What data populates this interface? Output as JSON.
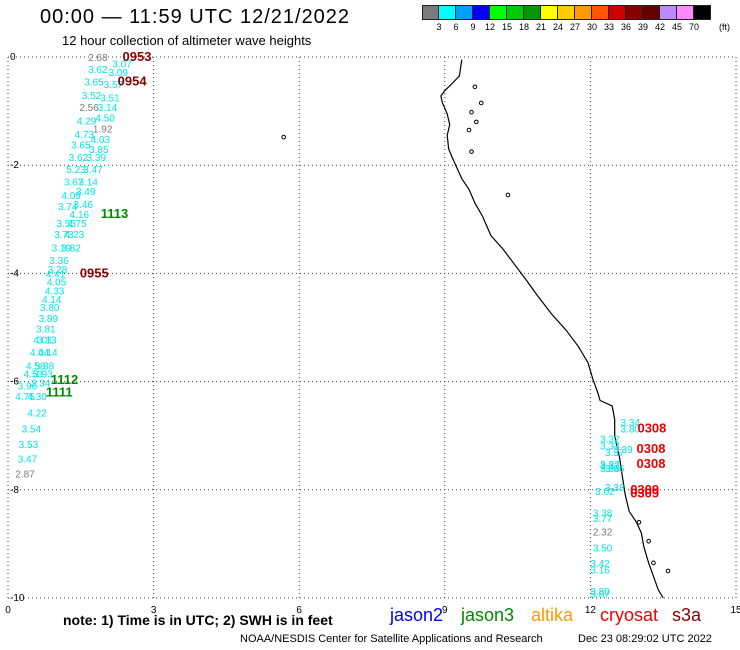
{
  "header": {
    "title": "00:00 — 11:59 UTC 12/21/2022",
    "subtitle": "12 hour collection of altimeter wave heights"
  },
  "color_scale": {
    "colors": [
      "#7a7a7a",
      "#00ffff",
      "#00a0ff",
      "#0000ff",
      "#00ff00",
      "#00cc00",
      "#009900",
      "#ffff00",
      "#ffcc00",
      "#ff9900",
      "#ff5500",
      "#cc0000",
      "#880000",
      "#660000",
      "#bb88ff",
      "#ff88ff",
      "#000000"
    ],
    "labels": [
      "3",
      "6",
      "9",
      "12",
      "15",
      "18",
      "21",
      "24",
      "27",
      "30",
      "33",
      "36",
      "39",
      "42",
      "45",
      "70"
    ],
    "unit": "(ft)"
  },
  "axes": {
    "x_ticks": [
      "0",
      "3",
      "6",
      "9",
      "12",
      "15"
    ],
    "y_ticks": [
      "0",
      "-2",
      "-4",
      "-6",
      "-8",
      "-10"
    ]
  },
  "observations": [
    {
      "text": "2.68",
      "color": "#7a7a7a",
      "lon": 1.65,
      "lat": 0.0
    },
    {
      "text": "3.07",
      "color": "#00e6e6",
      "lon": 2.15,
      "lat": -0.12
    },
    {
      "text": "3.62",
      "color": "#00e6e6",
      "lon": 1.65,
      "lat": -0.22
    },
    {
      "text": "3.09",
      "color": "#00e6e6",
      "lon": 2.07,
      "lat": -0.28
    },
    {
      "text": "3.65",
      "color": "#00e6e6",
      "lon": 1.57,
      "lat": -0.45
    },
    {
      "text": "3.57",
      "color": "#00e6e6",
      "lon": 1.97,
      "lat": -0.5
    },
    {
      "text": "3.52",
      "color": "#00e6e6",
      "lon": 1.52,
      "lat": -0.7
    },
    {
      "text": "3.51",
      "color": "#00e6e6",
      "lon": 1.9,
      "lat": -0.75
    },
    {
      "text": "2.56",
      "color": "#7a7a7a",
      "lon": 1.47,
      "lat": -0.92
    },
    {
      "text": "3.14",
      "color": "#00e6e6",
      "lon": 1.85,
      "lat": -0.92
    },
    {
      "text": "4.50",
      "color": "#00e6e6",
      "lon": 1.8,
      "lat": -1.12
    },
    {
      "text": "4.29",
      "color": "#00e6e6",
      "lon": 1.42,
      "lat": -1.17
    },
    {
      "text": "1.92",
      "color": "#7a7a7a",
      "lon": 1.75,
      "lat": -1.32
    },
    {
      "text": "4.73",
      "color": "#00e6e6",
      "lon": 1.37,
      "lat": -1.42
    },
    {
      "text": "4.03",
      "color": "#00e6e6",
      "lon": 1.7,
      "lat": -1.52
    },
    {
      "text": "3.65",
      "color": "#00e6e6",
      "lon": 1.3,
      "lat": -1.62
    },
    {
      "text": "3.85",
      "color": "#00e6e6",
      "lon": 1.67,
      "lat": -1.7
    },
    {
      "text": "3.62",
      "color": "#00e6e6",
      "lon": 1.25,
      "lat": -1.85
    },
    {
      "text": "3.39",
      "color": "#00e6e6",
      "lon": 1.62,
      "lat": -1.85
    },
    {
      "text": "5.23",
      "color": "#00e6e6",
      "lon": 1.2,
      "lat": -2.07
    },
    {
      "text": "3.47",
      "color": "#00e6e6",
      "lon": 1.55,
      "lat": -2.07
    },
    {
      "text": "3.67",
      "color": "#00e6e6",
      "lon": 1.15,
      "lat": -2.3
    },
    {
      "text": "3.14",
      "color": "#00e6e6",
      "lon": 1.45,
      "lat": -2.3
    },
    {
      "text": "4.09",
      "color": "#00e6e6",
      "lon": 1.1,
      "lat": -2.55
    },
    {
      "text": "3.49",
      "color": "#00e6e6",
      "lon": 1.4,
      "lat": -2.48
    },
    {
      "text": "3.46",
      "color": "#00e6e6",
      "lon": 1.35,
      "lat": -2.72
    },
    {
      "text": "3.74",
      "color": "#00e6e6",
      "lon": 1.03,
      "lat": -2.75
    },
    {
      "text": "4.16",
      "color": "#00e6e6",
      "lon": 1.27,
      "lat": -2.9
    },
    {
      "text": "3.55",
      "color": "#00e6e6",
      "lon": 1.0,
      "lat": -3.07
    },
    {
      "text": "4.75",
      "color": "#00e6e6",
      "lon": 1.22,
      "lat": -3.07
    },
    {
      "text": "3.73",
      "color": "#00e6e6",
      "lon": 0.95,
      "lat": -3.27
    },
    {
      "text": "4.23",
      "color": "#00e6e6",
      "lon": 1.17,
      "lat": -3.27
    },
    {
      "text": "3.19",
      "color": "#00e6e6",
      "lon": 0.9,
      "lat": -3.52
    },
    {
      "text": "3.82",
      "color": "#00e6e6",
      "lon": 1.1,
      "lat": -3.52
    },
    {
      "text": "3.36",
      "color": "#00e6e6",
      "lon": 0.85,
      "lat": -3.75
    },
    {
      "text": "3.28",
      "color": "#00e6e6",
      "lon": 0.82,
      "lat": -3.92
    },
    {
      "text": "4.41",
      "color": "#00e6e6",
      "lon": 0.78,
      "lat": -4.0
    },
    {
      "text": "4.05",
      "color": "#00e6e6",
      "lon": 0.8,
      "lat": -4.15
    },
    {
      "text": "4.33",
      "color": "#00e6e6",
      "lon": 0.76,
      "lat": -4.32
    },
    {
      "text": "4.14",
      "color": "#00e6e6",
      "lon": 0.7,
      "lat": -4.47
    },
    {
      "text": "3.80",
      "color": "#00e6e6",
      "lon": 0.66,
      "lat": -4.62
    },
    {
      "text": "3.89",
      "color": "#00e6e6",
      "lon": 0.63,
      "lat": -4.82
    },
    {
      "text": "3.81",
      "color": "#00e6e6",
      "lon": 0.58,
      "lat": -5.02
    },
    {
      "text": "4.01",
      "color": "#00e6e6",
      "lon": 0.52,
      "lat": -5.22
    },
    {
      "text": "3.13",
      "color": "#00e6e6",
      "lon": 0.6,
      "lat": -5.22
    },
    {
      "text": "4.04",
      "color": "#00e6e6",
      "lon": 0.45,
      "lat": -5.45
    },
    {
      "text": "4.14",
      "color": "#00e6e6",
      "lon": 0.62,
      "lat": -5.45
    },
    {
      "text": "4.58",
      "color": "#00e6e6",
      "lon": 0.37,
      "lat": -5.7
    },
    {
      "text": "3.38",
      "color": "#00e6e6",
      "lon": 0.55,
      "lat": -5.7
    },
    {
      "text": "4.53",
      "color": "#00e6e6",
      "lon": 0.32,
      "lat": -5.85
    },
    {
      "text": "3.93",
      "color": "#00e6e6",
      "lon": 0.52,
      "lat": -5.85
    },
    {
      "text": "3.34",
      "color": "#00e6e6",
      "lon": 0.47,
      "lat": -6.02
    },
    {
      "text": "3.96",
      "color": "#00e6e6",
      "lon": 0.2,
      "lat": -6.07
    },
    {
      "text": "4.75",
      "color": "#00e6e6",
      "lon": 0.15,
      "lat": -6.27
    },
    {
      "text": "4.30",
      "color": "#00e6e6",
      "lon": 0.4,
      "lat": -6.27
    },
    {
      "text": "4.22",
      "color": "#00e6e6",
      "lon": 0.4,
      "lat": -6.57
    },
    {
      "text": "3.54",
      "color": "#00e6e6",
      "lon": 0.28,
      "lat": -6.87
    },
    {
      "text": "3.53",
      "color": "#00e6e6",
      "lon": 0.22,
      "lat": -7.15
    },
    {
      "text": "3.47",
      "color": "#00e6e6",
      "lon": 0.2,
      "lat": -7.42
    },
    {
      "text": "2.87",
      "color": "#7a7a7a",
      "lon": 0.15,
      "lat": -7.7
    },
    {
      "text": "0953",
      "color": "#880000",
      "lon": 2.36,
      "lat": 0.0,
      "big": true
    },
    {
      "text": "0954",
      "color": "#880000",
      "lon": 2.26,
      "lat": -0.45,
      "big": true
    },
    {
      "text": "0955",
      "color": "#880000",
      "lon": 1.48,
      "lat": -4.0,
      "big": true
    },
    {
      "text": "1113",
      "color": "#008800",
      "lon": 1.91,
      "lat": -2.9,
      "big": true
    },
    {
      "text": "1112",
      "color": "#008800",
      "lon": 0.88,
      "lat": -5.97,
      "big": true
    },
    {
      "text": "1111",
      "color": "#008800",
      "lon": 0.78,
      "lat": -6.2,
      "big": true
    },
    {
      "text": "3.34",
      "color": "#00e6e6",
      "lon": 12.62,
      "lat": -6.75
    },
    {
      "text": "3.80",
      "color": "#00e6e6",
      "lon": 12.62,
      "lat": -6.87
    },
    {
      "text": "3.39",
      "color": "#00e6e6",
      "lon": 12.47,
      "lat": -7.25
    },
    {
      "text": "3.37",
      "color": "#00e6e6",
      "lon": 12.3,
      "lat": -7.3
    },
    {
      "text": "3.66",
      "color": "#00e6e6",
      "lon": 12.3,
      "lat": -7.6
    },
    {
      "text": "3.37",
      "color": "#00e6e6",
      "lon": 12.2,
      "lat": -7.52
    },
    {
      "text": "3.33",
      "color": "#00e6e6",
      "lon": 12.2,
      "lat": -7.6
    },
    {
      "text": "3.32",
      "color": "#00e6e6",
      "lon": 12.2,
      "lat": -7.55
    },
    {
      "text": "3.32",
      "color": "#00e6e6",
      "lon": 12.2,
      "lat": -7.05
    },
    {
      "text": "3.33",
      "color": "#00e6e6",
      "lon": 12.2,
      "lat": -7.18
    },
    {
      "text": "3.38",
      "color": "#00e6e6",
      "lon": 12.3,
      "lat": -7.95
    },
    {
      "text": "3.02",
      "color": "#00e6e6",
      "lon": 12.1,
      "lat": -8.02
    },
    {
      "text": "3.38",
      "color": "#00e6e6",
      "lon": 12.05,
      "lat": -8.42
    },
    {
      "text": "3.77",
      "color": "#00e6e6",
      "lon": 12.05,
      "lat": -8.52
    },
    {
      "text": "2.32",
      "color": "#7a7a7a",
      "lon": 12.05,
      "lat": -8.77
    },
    {
      "text": "3.50",
      "color": "#00e6e6",
      "lon": 12.05,
      "lat": -9.07
    },
    {
      "text": "3.42",
      "color": "#00e6e6",
      "lon": 12.0,
      "lat": -9.35
    },
    {
      "text": "3.16",
      "color": "#00e6e6",
      "lon": 12.0,
      "lat": -9.47
    },
    {
      "text": "3.80",
      "color": "#00e6e6",
      "lon": 12.0,
      "lat": -9.87
    },
    {
      "text": "3.87",
      "color": "#00e6e6",
      "lon": 12.0,
      "lat": -9.92
    },
    {
      "text": "0308",
      "color": "#ee0000",
      "lon": 12.97,
      "lat": -6.87,
      "big": true
    },
    {
      "text": "0308",
      "color": "#ee0000",
      "lon": 12.95,
      "lat": -7.25,
      "big": true
    },
    {
      "text": "0308",
      "color": "#ee0000",
      "lon": 12.95,
      "lat": -7.52,
      "big": true
    },
    {
      "text": "0309",
      "color": "#ee0000",
      "lon": 12.82,
      "lat": -8.0,
      "big": true
    },
    {
      "text": "0309",
      "color": "#ee0000",
      "lon": 12.82,
      "lat": -8.07,
      "big": true
    }
  ],
  "coastline": [
    [
      9.35,
      -0.05
    ],
    [
      9.3,
      -0.35
    ],
    [
      9.12,
      -0.52
    ],
    [
      9.0,
      -0.62
    ],
    [
      8.92,
      -0.72
    ],
    [
      8.95,
      -0.85
    ],
    [
      9.05,
      -1.05
    ],
    [
      9.1,
      -1.25
    ],
    [
      9.05,
      -1.45
    ],
    [
      9.08,
      -1.7
    ],
    [
      9.15,
      -1.85
    ],
    [
      9.25,
      -2.05
    ],
    [
      9.35,
      -2.25
    ],
    [
      9.5,
      -2.45
    ],
    [
      9.62,
      -2.7
    ],
    [
      9.78,
      -2.95
    ],
    [
      9.95,
      -3.3
    ],
    [
      10.2,
      -3.55
    ],
    [
      10.45,
      -3.85
    ],
    [
      10.7,
      -4.15
    ],
    [
      10.9,
      -4.4
    ],
    [
      11.2,
      -4.75
    ],
    [
      11.5,
      -5.05
    ],
    [
      11.75,
      -5.35
    ],
    [
      11.95,
      -5.65
    ],
    [
      12.05,
      -5.95
    ],
    [
      12.15,
      -6.2
    ],
    [
      12.2,
      -6.35
    ],
    [
      12.45,
      -6.45
    ],
    [
      12.5,
      -6.7
    ],
    [
      12.5,
      -7.0
    ],
    [
      12.6,
      -7.4
    ],
    [
      12.65,
      -7.7
    ],
    [
      12.72,
      -8.1
    ],
    [
      12.8,
      -8.4
    ],
    [
      12.95,
      -8.6
    ],
    [
      13.05,
      -8.8
    ],
    [
      13.1,
      -9.05
    ],
    [
      13.2,
      -9.35
    ],
    [
      13.3,
      -9.6
    ],
    [
      13.4,
      -9.85
    ],
    [
      13.5,
      -10.0
    ]
  ],
  "islands": [
    [
      9.62,
      -0.55
    ],
    [
      9.75,
      -0.85
    ],
    [
      9.55,
      -1.02
    ],
    [
      9.65,
      -1.2
    ],
    [
      9.5,
      -1.35
    ],
    [
      9.55,
      -1.75
    ],
    [
      10.3,
      -2.55
    ],
    [
      13.0,
      -8.6
    ],
    [
      13.2,
      -8.95
    ],
    [
      13.3,
      -9.35
    ],
    [
      13.6,
      -9.5
    ],
    [
      5.68,
      -1.48
    ]
  ],
  "footer": {
    "note": "note:  1) Time is in UTC;  2) SWH is in feet",
    "legend": [
      {
        "name": "jason2",
        "color": "#0000ee"
      },
      {
        "name": "jason3",
        "color": "#008800"
      },
      {
        "name": "altika",
        "color": "#ff9900"
      },
      {
        "name": "cryosat",
        "color": "#ee0000"
      },
      {
        "name": "s3a",
        "color": "#880000"
      }
    ],
    "credit": "NOAA/NESDIS Center for Satellite Applications and Research",
    "stamp": "Dec 23 08:29:02 UTC 2022"
  }
}
